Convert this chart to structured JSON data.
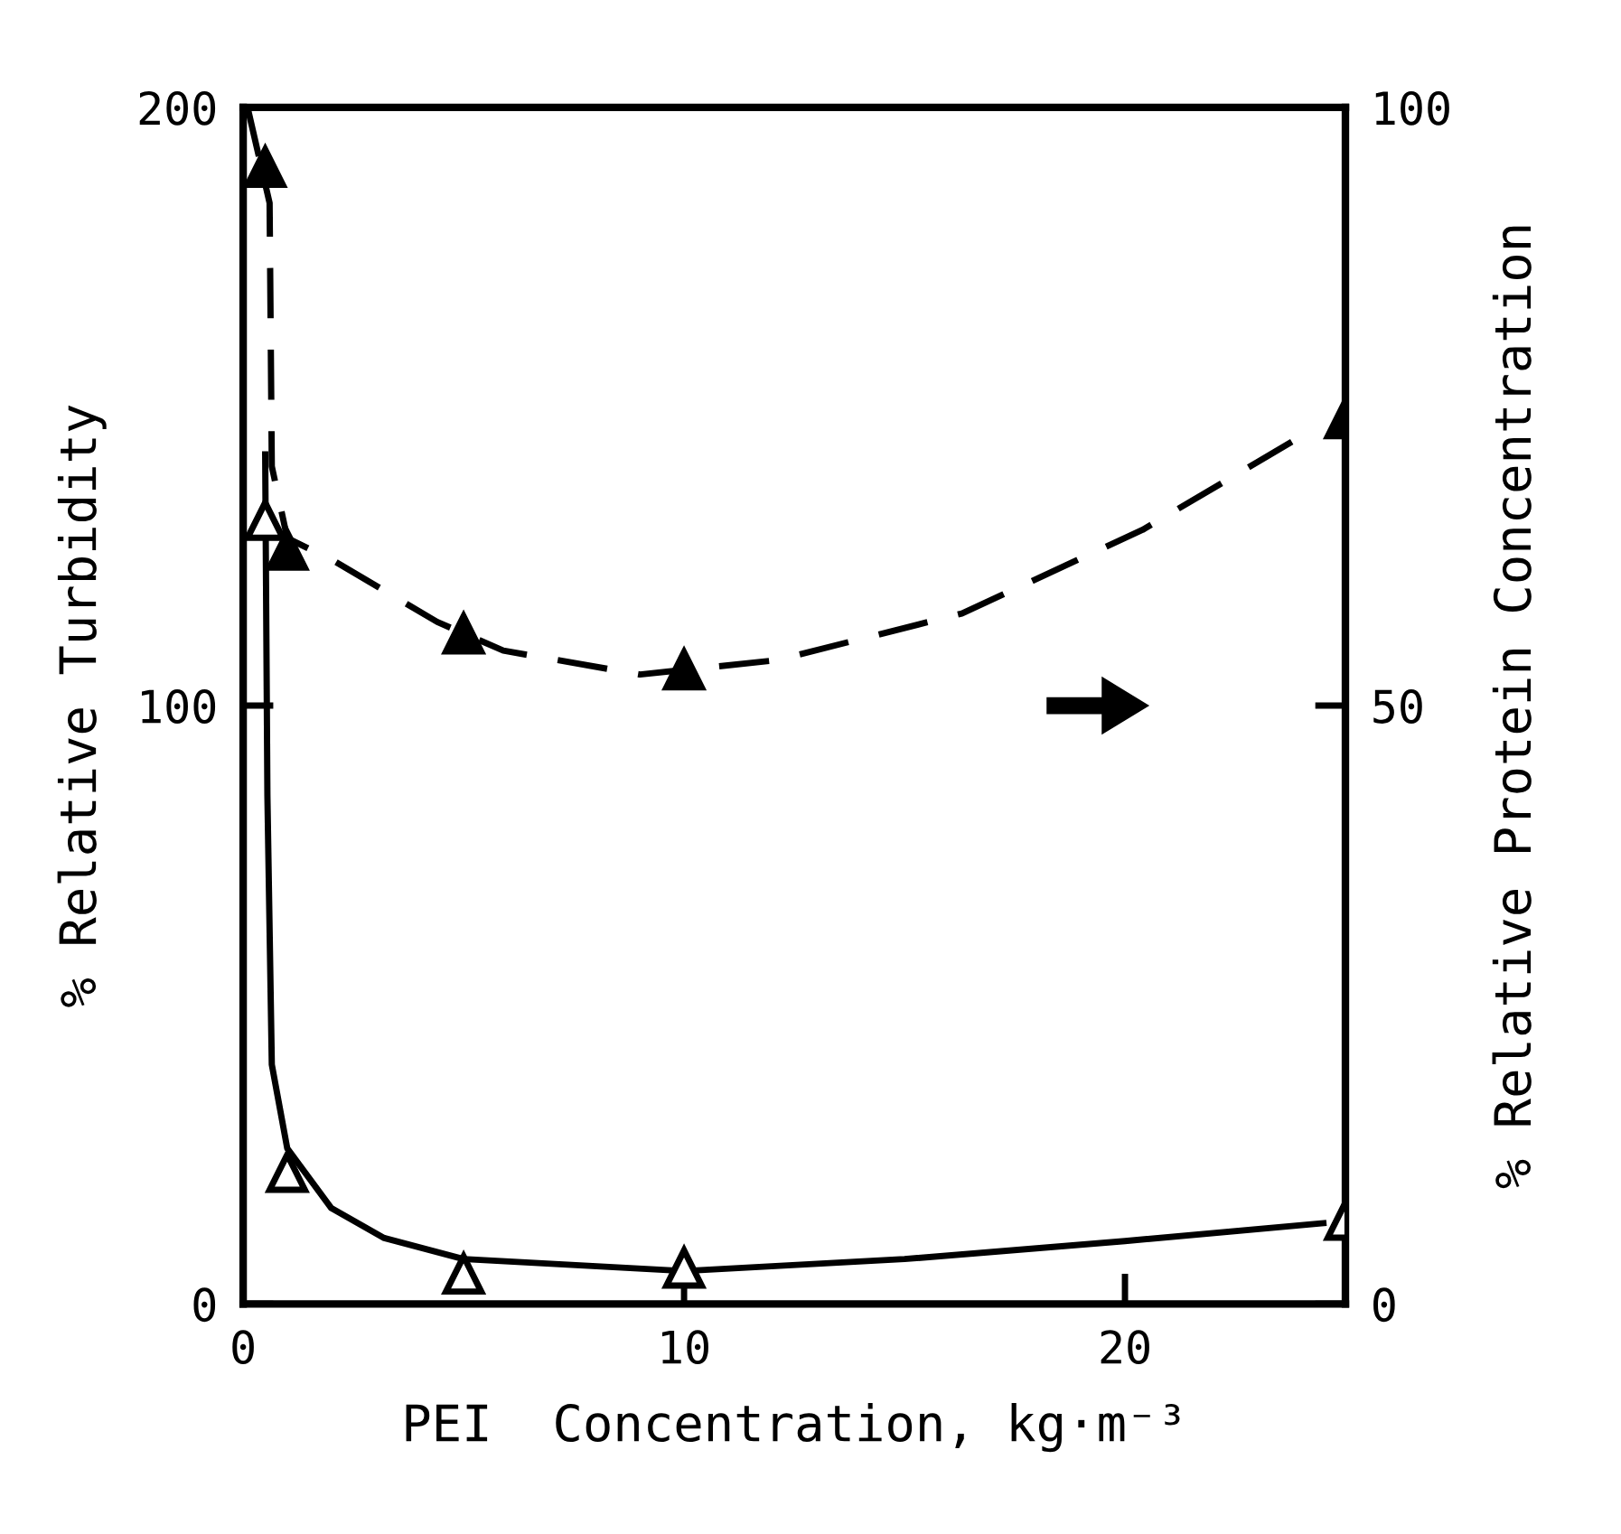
{
  "chart_data": {
    "type": "scatter",
    "xlabel": "PEI  Concentration, kg·m⁻³",
    "ylabel": "% Relative Turbidity",
    "y2label": "% Relative Protein Concentration",
    "xlim": [
      0,
      25
    ],
    "xticks": [
      0,
      10,
      20
    ],
    "ylim": [
      0,
      200
    ],
    "yticks": [
      0,
      100,
      200
    ],
    "y2lim": [
      0,
      100
    ],
    "y2ticks": [
      0,
      50,
      100
    ],
    "grid": false,
    "legend": false,
    "series": [
      {
        "marker": "triangle",
        "color": "#000000",
        "x": [
          0.5,
          1,
          5,
          10,
          25
        ],
        "values": [
          131,
          22,
          5,
          6,
          14
        ]
      },
      {
        "type": "line",
        "color": "#000000",
        "line_style": "solid",
        "x": [
          0.5,
          0.55,
          0.65,
          1,
          2,
          3.2,
          5,
          10,
          15,
          20,
          24.5
        ],
        "values": [
          142,
          85,
          40,
          26,
          16,
          11,
          7.5,
          5.5,
          7.5,
          10.5,
          13.5
        ]
      },
      {
        "marker": "triangle",
        "axis": "y2",
        "color": "#000000",
        "x": [
          0.5,
          1,
          5,
          10,
          25
        ],
        "values": [
          95,
          63,
          56,
          53,
          74
        ]
      },
      {
        "type": "line",
        "axis": "y2",
        "color": "#000000",
        "line_style": "dashed",
        "x": [
          0.1,
          0.6,
          0.65,
          1,
          2.1,
          4.4,
          5.9,
          9,
          12.1,
          16.3,
          20.4,
          23.9
        ],
        "values": [
          100,
          92,
          70,
          64,
          62,
          57,
          54.6,
          52.6,
          53.8,
          57.7,
          64.7,
          72.3
        ]
      }
    ]
  }
}
